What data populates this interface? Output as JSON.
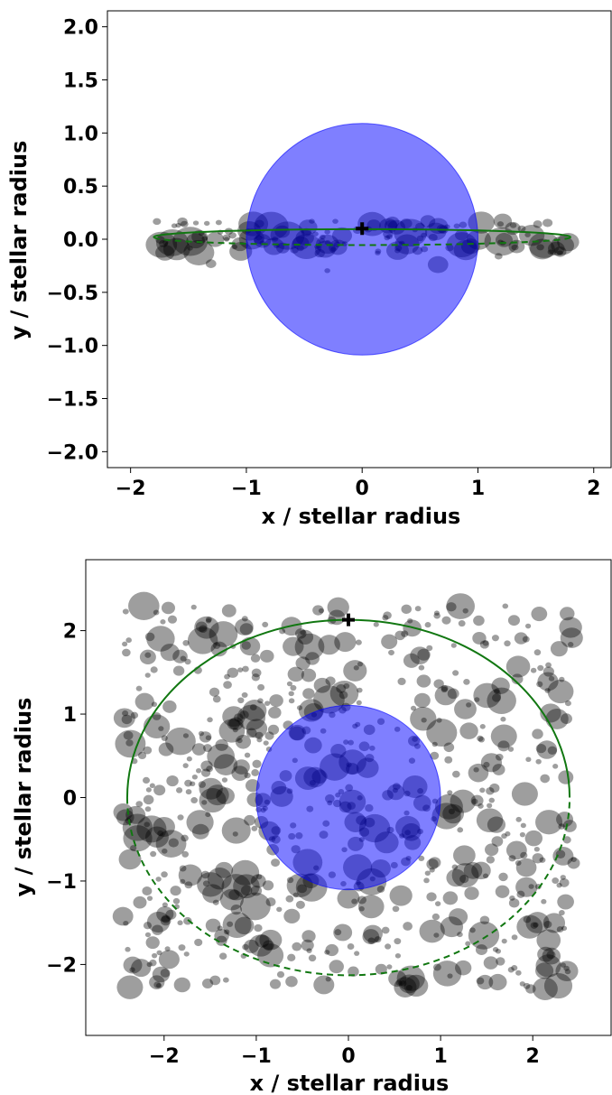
{
  "colors": {
    "star": "#0000ff",
    "orbit": "#117711",
    "particles": "#000000",
    "axes": "#000000"
  },
  "chart_data": [
    {
      "type": "scatter",
      "title": "",
      "xlabel": "x / stellar radius",
      "ylabel": "y / stellar radius",
      "xlim": [
        -2.2,
        2.15
      ],
      "ylim": [
        -2.15,
        2.15
      ],
      "xticks": [
        -2,
        -1,
        0,
        1,
        2
      ],
      "xtick_labels": [
        "−2",
        "−1",
        "0",
        "1",
        "2"
      ],
      "yticks": [
        2.0,
        1.5,
        1.0,
        0.5,
        0.0,
        -0.5,
        -1.0,
        -1.5,
        -2.0
      ],
      "ytick_labels": [
        "2.0",
        "1.5",
        "1.0",
        "0.5",
        "0.0",
        "−0.5",
        "−1.0",
        "−1.5",
        "−2.0"
      ],
      "grid": false,
      "star": {
        "x": 0,
        "y": 0,
        "radius": 1.0
      },
      "planet_marker": {
        "x": 0.0,
        "y": 0.1
      },
      "orbit": {
        "semi_major": 1.8,
        "semi_minor": 0.075,
        "center_y": 0.02
      },
      "particle_count": 140
    },
    {
      "type": "scatter",
      "title": "",
      "xlabel": "x / stellar radius",
      "ylabel": "y / stellar radius",
      "xlim": [
        -2.85,
        2.85
      ],
      "ylim": [
        -2.85,
        2.85
      ],
      "xticks": [
        -2,
        -1,
        0,
        1,
        2
      ],
      "xtick_labels": [
        "−2",
        "−1",
        "0",
        "1",
        "2"
      ],
      "yticks": [
        2,
        1,
        0,
        -1,
        -2
      ],
      "ytick_labels": [
        "2",
        "1",
        "0",
        "−1",
        "−2"
      ],
      "grid": false,
      "star": {
        "x": 0,
        "y": 0,
        "radius": 1.0
      },
      "planet_marker": {
        "x": 0.0,
        "y": 2.13
      },
      "orbit": {
        "semi_major": 2.4,
        "semi_minor": 2.13,
        "center_y": 0.0
      },
      "particle_count": 700
    }
  ]
}
